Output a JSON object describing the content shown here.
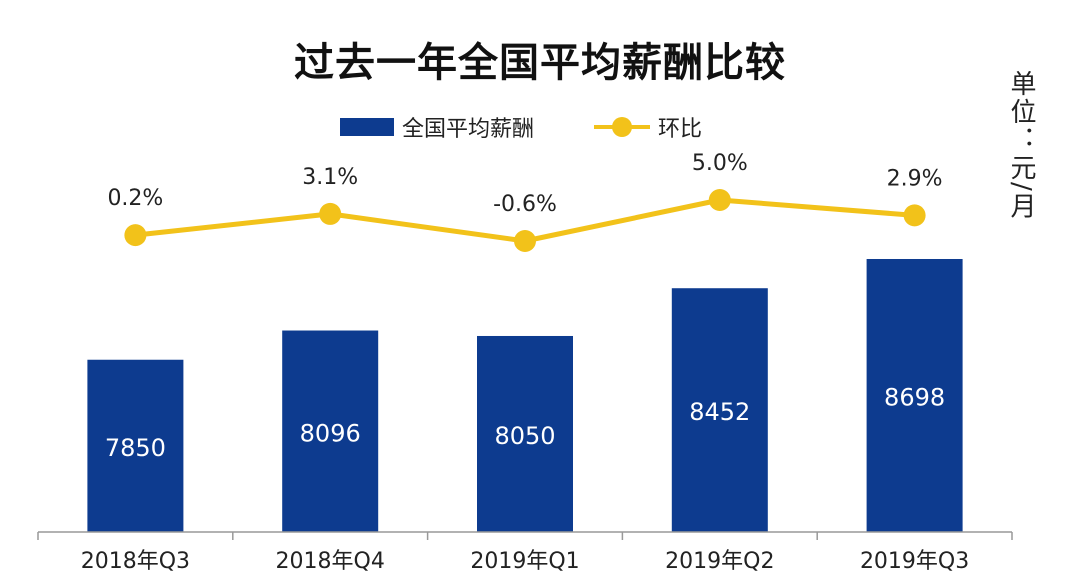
{
  "chart_data": {
    "type": "bar",
    "title": "过去一年全国平均薪酬比较",
    "unit_label": "单位：元/月",
    "categories": [
      "2018年Q3",
      "2018年Q4",
      "2019年Q1",
      "2019年Q2",
      "2019年Q3"
    ],
    "series": [
      {
        "name": "全国平均薪酬",
        "type": "bar",
        "color": "#0d3b8f",
        "values": [
          7850,
          8096,
          8050,
          8452,
          8698
        ],
        "labels": [
          "7850",
          "8096",
          "8050",
          "8452",
          "8698"
        ]
      },
      {
        "name": "环比",
        "type": "line",
        "color": "#f2c21a",
        "values": [
          0.2,
          3.1,
          -0.6,
          5.0,
          2.9
        ],
        "labels": [
          "0.2%",
          "3.1%",
          "-0.6%",
          "5.0%",
          "2.9%"
        ]
      }
    ],
    "legend_position": "top",
    "grid": false
  }
}
